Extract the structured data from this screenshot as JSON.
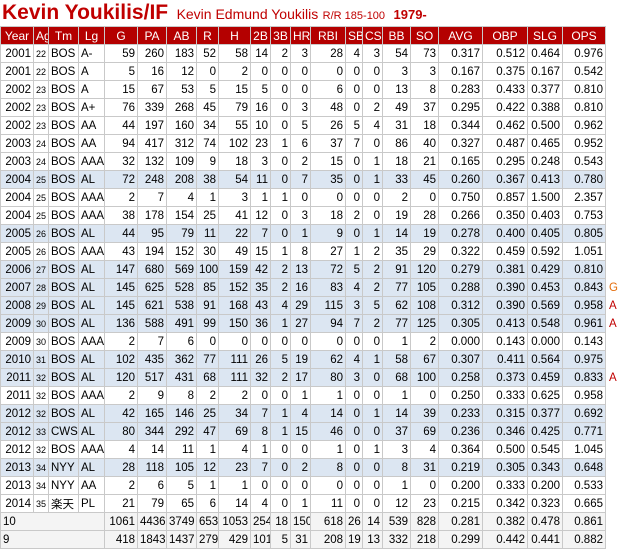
{
  "header": {
    "title": "Kevin Youkilis/IF",
    "full_name": "Kevin Edmund Youkilis",
    "bio": "R/R 185-100",
    "born": "1979-"
  },
  "table": {
    "columns": [
      "Year",
      "Age",
      "Tm",
      "Lg",
      "G",
      "PA",
      "AB",
      "R",
      "H",
      "2B",
      "3B",
      "HR",
      "RBI",
      "SB",
      "CS",
      "BB",
      "SO",
      "AVG",
      "OBP",
      "SLG",
      "OPS"
    ],
    "rows": [
      {
        "cells": [
          "2001",
          "22",
          "BOS",
          "A-",
          "59",
          "260",
          "183",
          "52",
          "58",
          "14",
          "2",
          "3",
          "28",
          "4",
          "3",
          "54",
          "73",
          "0.317",
          "0.512",
          "0.464",
          "0.976"
        ]
      },
      {
        "cells": [
          "2001",
          "22",
          "BOS",
          "A",
          "5",
          "16",
          "12",
          "0",
          "2",
          "0",
          "0",
          "0",
          "0",
          "0",
          "0",
          "3",
          "3",
          "0.167",
          "0.375",
          "0.167",
          "0.542"
        ]
      },
      {
        "cells": [
          "2002",
          "23",
          "BOS",
          "A",
          "15",
          "67",
          "53",
          "5",
          "15",
          "5",
          "0",
          "0",
          "6",
          "0",
          "0",
          "13",
          "8",
          "0.283",
          "0.433",
          "0.377",
          "0.810"
        ]
      },
      {
        "cells": [
          "2002",
          "23",
          "BOS",
          "A+",
          "76",
          "339",
          "268",
          "45",
          "79",
          "16",
          "0",
          "3",
          "48",
          "0",
          "2",
          "49",
          "37",
          "0.295",
          "0.422",
          "0.388",
          "0.810"
        ]
      },
      {
        "cells": [
          "2002",
          "23",
          "BOS",
          "AA",
          "44",
          "197",
          "160",
          "34",
          "55",
          "10",
          "0",
          "5",
          "26",
          "5",
          "4",
          "31",
          "18",
          "0.344",
          "0.462",
          "0.500",
          "0.962"
        ]
      },
      {
        "cells": [
          "2003",
          "24",
          "BOS",
          "AA",
          "94",
          "417",
          "312",
          "74",
          "102",
          "23",
          "1",
          "6",
          "37",
          "7",
          "0",
          "86",
          "40",
          "0.327",
          "0.487",
          "0.465",
          "0.952"
        ]
      },
      {
        "cells": [
          "2003",
          "24",
          "BOS",
          "AAA",
          "32",
          "132",
          "109",
          "9",
          "18",
          "3",
          "0",
          "2",
          "15",
          "0",
          "1",
          "18",
          "21",
          "0.165",
          "0.295",
          "0.248",
          "0.543"
        ]
      },
      {
        "cells": [
          "2004",
          "25",
          "BOS",
          "AL",
          "72",
          "248",
          "208",
          "38",
          "54",
          "11",
          "0",
          "7",
          "35",
          "0",
          "1",
          "33",
          "45",
          "0.260",
          "0.367",
          "0.413",
          "0.780"
        ]
      },
      {
        "cells": [
          "2004",
          "25",
          "BOS",
          "AAA",
          "2",
          "7",
          "4",
          "1",
          "3",
          "1",
          "1",
          "0",
          "0",
          "0",
          "0",
          "2",
          "0",
          "0.750",
          "0.857",
          "1.500",
          "2.357"
        ]
      },
      {
        "cells": [
          "2004",
          "25",
          "BOS",
          "AAA",
          "38",
          "178",
          "154",
          "25",
          "41",
          "12",
          "0",
          "3",
          "18",
          "2",
          "0",
          "19",
          "28",
          "0.266",
          "0.350",
          "0.403",
          "0.753"
        ]
      },
      {
        "cells": [
          "2005",
          "26",
          "BOS",
          "AL",
          "44",
          "95",
          "79",
          "11",
          "22",
          "7",
          "0",
          "1",
          "9",
          "0",
          "1",
          "14",
          "19",
          "0.278",
          "0.400",
          "0.405",
          "0.805"
        ]
      },
      {
        "cells": [
          "2005",
          "26",
          "BOS",
          "AAA",
          "43",
          "194",
          "152",
          "30",
          "49",
          "15",
          "1",
          "8",
          "27",
          "1",
          "2",
          "35",
          "29",
          "0.322",
          "0.459",
          "0.592",
          "1.051"
        ]
      },
      {
        "cells": [
          "2006",
          "27",
          "BOS",
          "AL",
          "147",
          "680",
          "569",
          "100",
          "159",
          "42",
          "2",
          "13",
          "72",
          "5",
          "2",
          "91",
          "120",
          "0.279",
          "0.381",
          "0.429",
          "0.810"
        ]
      },
      {
        "cells": [
          "2007",
          "28",
          "BOS",
          "AL",
          "145",
          "625",
          "528",
          "85",
          "152",
          "35",
          "2",
          "16",
          "83",
          "4",
          "2",
          "77",
          "105",
          "0.288",
          "0.390",
          "0.453",
          "0.843"
        ],
        "award": "G"
      },
      {
        "cells": [
          "2008",
          "29",
          "BOS",
          "AL",
          "145",
          "621",
          "538",
          "91",
          "168",
          "43",
          "4",
          "29",
          "115",
          "3",
          "5",
          "62",
          "108",
          "0.312",
          "0.390",
          "0.569",
          "0.958"
        ],
        "award": "A"
      },
      {
        "cells": [
          "2009",
          "30",
          "BOS",
          "AL",
          "136",
          "588",
          "491",
          "99",
          "150",
          "36",
          "1",
          "27",
          "94",
          "7",
          "2",
          "77",
          "125",
          "0.305",
          "0.413",
          "0.548",
          "0.961"
        ],
        "award": "A"
      },
      {
        "cells": [
          "2009",
          "30",
          "BOS",
          "AAA",
          "2",
          "7",
          "6",
          "0",
          "0",
          "0",
          "0",
          "0",
          "0",
          "0",
          "0",
          "1",
          "2",
          "0.000",
          "0.143",
          "0.000",
          "0.143"
        ]
      },
      {
        "cells": [
          "2010",
          "31",
          "BOS",
          "AL",
          "102",
          "435",
          "362",
          "77",
          "111",
          "26",
          "5",
          "19",
          "62",
          "4",
          "1",
          "58",
          "67",
          "0.307",
          "0.411",
          "0.564",
          "0.975"
        ]
      },
      {
        "cells": [
          "2011",
          "32",
          "BOS",
          "AL",
          "120",
          "517",
          "431",
          "68",
          "111",
          "32",
          "2",
          "17",
          "80",
          "3",
          "0",
          "68",
          "100",
          "0.258",
          "0.373",
          "0.459",
          "0.833"
        ],
        "award": "A"
      },
      {
        "cells": [
          "2011",
          "32",
          "BOS",
          "AAA",
          "2",
          "9",
          "8",
          "2",
          "2",
          "0",
          "0",
          "1",
          "1",
          "0",
          "0",
          "1",
          "0",
          "0.250",
          "0.333",
          "0.625",
          "0.958"
        ]
      },
      {
        "cells": [
          "2012",
          "32",
          "BOS",
          "AL",
          "42",
          "165",
          "146",
          "25",
          "34",
          "7",
          "1",
          "4",
          "14",
          "0",
          "1",
          "14",
          "39",
          "0.233",
          "0.315",
          "0.377",
          "0.692"
        ]
      },
      {
        "cells": [
          "2012",
          "33",
          "CWS",
          "AL",
          "80",
          "344",
          "292",
          "47",
          "69",
          "8",
          "1",
          "15",
          "46",
          "0",
          "0",
          "37",
          "69",
          "0.236",
          "0.346",
          "0.425",
          "0.771"
        ]
      },
      {
        "cells": [
          "2012",
          "32",
          "BOS",
          "AAA",
          "4",
          "14",
          "11",
          "1",
          "4",
          "1",
          "0",
          "0",
          "1",
          "0",
          "1",
          "3",
          "4",
          "0.364",
          "0.500",
          "0.545",
          "1.045"
        ]
      },
      {
        "cells": [
          "2013",
          "34",
          "NYY",
          "AL",
          "28",
          "118",
          "105",
          "12",
          "23",
          "7",
          "0",
          "2",
          "8",
          "0",
          "0",
          "8",
          "31",
          "0.219",
          "0.305",
          "0.343",
          "0.648"
        ]
      },
      {
        "cells": [
          "2013",
          "34",
          "NYY",
          "AA",
          "2",
          "6",
          "5",
          "1",
          "1",
          "0",
          "0",
          "0",
          "0",
          "0",
          "0",
          "1",
          "0",
          "0.200",
          "0.333",
          "0.200",
          "0.533"
        ]
      },
      {
        "cells": [
          "2014",
          "35",
          "楽天",
          "PL",
          "21",
          "79",
          "65",
          "6",
          "14",
          "4",
          "0",
          "1",
          "11",
          "0",
          "0",
          "12",
          "23",
          "0.215",
          "0.342",
          "0.323",
          "0.665"
        ]
      }
    ],
    "totals": [
      {
        "label": "10",
        "values": [
          "1061",
          "4436",
          "3749",
          "653",
          "1053",
          "254",
          "18",
          "150",
          "618",
          "26",
          "14",
          "539",
          "828",
          "0.281",
          "0.382",
          "0.478",
          "0.861"
        ]
      },
      {
        "label": "9",
        "values": [
          "418",
          "1843",
          "1437",
          "279",
          "429",
          "101",
          "5",
          "31",
          "208",
          "19",
          "13",
          "332",
          "218",
          "0.299",
          "0.442",
          "0.441",
          "0.882"
        ]
      }
    ]
  }
}
